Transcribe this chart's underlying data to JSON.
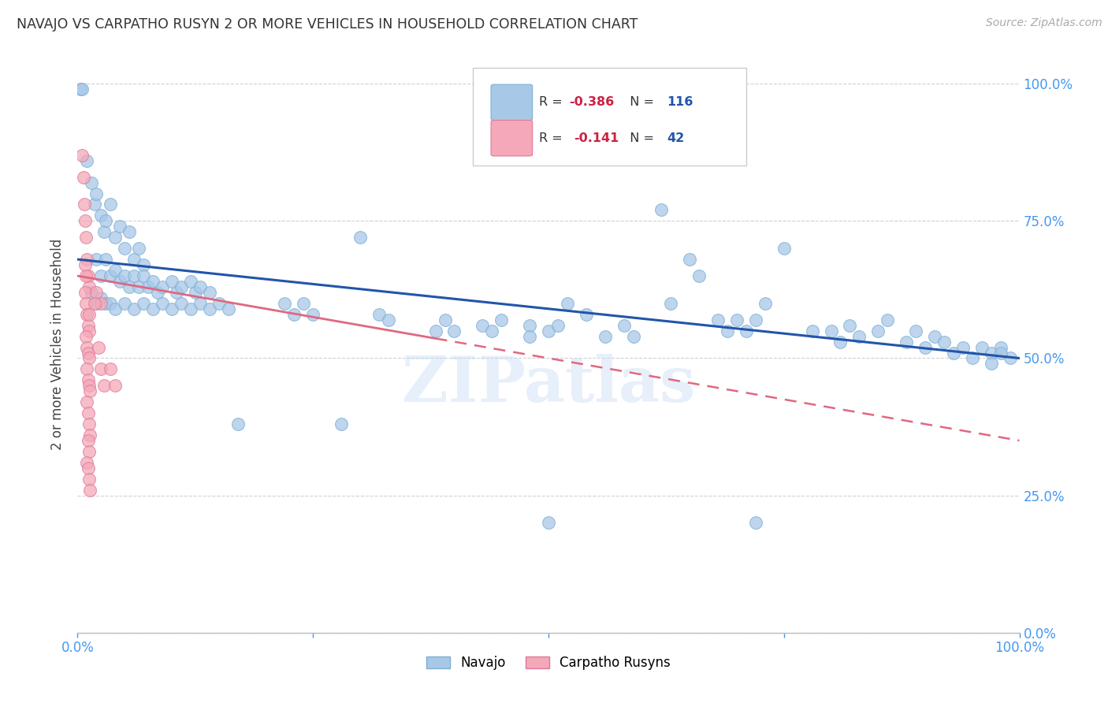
{
  "title": "NAVAJO VS CARPATHO RUSYN 2 OR MORE VEHICLES IN HOUSEHOLD CORRELATION CHART",
  "source": "Source: ZipAtlas.com",
  "ylabel": "2 or more Vehicles in Household",
  "navajo_color": "#a8c8e8",
  "navajo_edge_color": "#7aafd4",
  "carpatho_color": "#f4a8b8",
  "carpatho_edge_color": "#e07898",
  "navajo_line_color": "#2255aa",
  "carpatho_line_color": "#e06880",
  "watermark": "ZIPatlas",
  "xlim": [
    0.0,
    1.0
  ],
  "ylim": [
    0.0,
    1.05
  ],
  "navajo_points": [
    [
      0.003,
      0.99
    ],
    [
      0.005,
      0.99
    ],
    [
      0.01,
      0.86
    ],
    [
      0.015,
      0.82
    ],
    [
      0.018,
      0.78
    ],
    [
      0.02,
      0.8
    ],
    [
      0.025,
      0.76
    ],
    [
      0.028,
      0.73
    ],
    [
      0.03,
      0.75
    ],
    [
      0.035,
      0.78
    ],
    [
      0.04,
      0.72
    ],
    [
      0.045,
      0.74
    ],
    [
      0.05,
      0.7
    ],
    [
      0.055,
      0.73
    ],
    [
      0.06,
      0.68
    ],
    [
      0.065,
      0.7
    ],
    [
      0.07,
      0.67
    ],
    [
      0.02,
      0.68
    ],
    [
      0.025,
      0.65
    ],
    [
      0.03,
      0.68
    ],
    [
      0.035,
      0.65
    ],
    [
      0.04,
      0.66
    ],
    [
      0.045,
      0.64
    ],
    [
      0.05,
      0.65
    ],
    [
      0.055,
      0.63
    ],
    [
      0.06,
      0.65
    ],
    [
      0.065,
      0.63
    ],
    [
      0.07,
      0.65
    ],
    [
      0.075,
      0.63
    ],
    [
      0.08,
      0.64
    ],
    [
      0.085,
      0.62
    ],
    [
      0.09,
      0.63
    ],
    [
      0.1,
      0.64
    ],
    [
      0.105,
      0.62
    ],
    [
      0.11,
      0.63
    ],
    [
      0.12,
      0.64
    ],
    [
      0.125,
      0.62
    ],
    [
      0.13,
      0.63
    ],
    [
      0.14,
      0.62
    ],
    [
      0.015,
      0.62
    ],
    [
      0.02,
      0.6
    ],
    [
      0.025,
      0.61
    ],
    [
      0.03,
      0.6
    ],
    [
      0.035,
      0.6
    ],
    [
      0.04,
      0.59
    ],
    [
      0.05,
      0.6
    ],
    [
      0.06,
      0.59
    ],
    [
      0.07,
      0.6
    ],
    [
      0.08,
      0.59
    ],
    [
      0.09,
      0.6
    ],
    [
      0.1,
      0.59
    ],
    [
      0.11,
      0.6
    ],
    [
      0.12,
      0.59
    ],
    [
      0.13,
      0.6
    ],
    [
      0.14,
      0.59
    ],
    [
      0.15,
      0.6
    ],
    [
      0.16,
      0.59
    ],
    [
      0.17,
      0.38
    ],
    [
      0.22,
      0.6
    ],
    [
      0.23,
      0.58
    ],
    [
      0.24,
      0.6
    ],
    [
      0.25,
      0.58
    ],
    [
      0.28,
      0.38
    ],
    [
      0.3,
      0.72
    ],
    [
      0.32,
      0.58
    ],
    [
      0.33,
      0.57
    ],
    [
      0.38,
      0.55
    ],
    [
      0.39,
      0.57
    ],
    [
      0.4,
      0.55
    ],
    [
      0.43,
      0.56
    ],
    [
      0.44,
      0.55
    ],
    [
      0.45,
      0.57
    ],
    [
      0.48,
      0.56
    ],
    [
      0.5,
      0.55
    ],
    [
      0.51,
      0.56
    ],
    [
      0.48,
      0.54
    ],
    [
      0.52,
      0.6
    ],
    [
      0.54,
      0.58
    ],
    [
      0.56,
      0.54
    ],
    [
      0.58,
      0.56
    ],
    [
      0.59,
      0.54
    ],
    [
      0.62,
      0.77
    ],
    [
      0.63,
      0.6
    ],
    [
      0.65,
      0.68
    ],
    [
      0.66,
      0.65
    ],
    [
      0.68,
      0.57
    ],
    [
      0.69,
      0.55
    ],
    [
      0.7,
      0.57
    ],
    [
      0.71,
      0.55
    ],
    [
      0.72,
      0.57
    ],
    [
      0.73,
      0.6
    ],
    [
      0.75,
      0.7
    ],
    [
      0.78,
      0.55
    ],
    [
      0.8,
      0.55
    ],
    [
      0.81,
      0.53
    ],
    [
      0.82,
      0.56
    ],
    [
      0.83,
      0.54
    ],
    [
      0.85,
      0.55
    ],
    [
      0.86,
      0.57
    ],
    [
      0.88,
      0.53
    ],
    [
      0.89,
      0.55
    ],
    [
      0.9,
      0.52
    ],
    [
      0.91,
      0.54
    ],
    [
      0.92,
      0.53
    ],
    [
      0.93,
      0.51
    ],
    [
      0.94,
      0.52
    ],
    [
      0.95,
      0.5
    ],
    [
      0.96,
      0.52
    ],
    [
      0.97,
      0.51
    ],
    [
      0.98,
      0.52
    ],
    [
      0.99,
      0.5
    ],
    [
      0.97,
      0.49
    ],
    [
      0.98,
      0.51
    ],
    [
      0.72,
      0.2
    ],
    [
      0.5,
      0.2
    ]
  ],
  "carpatho_points": [
    [
      0.005,
      0.87
    ],
    [
      0.006,
      0.83
    ],
    [
      0.007,
      0.78
    ],
    [
      0.008,
      0.75
    ],
    [
      0.009,
      0.72
    ],
    [
      0.01,
      0.68
    ],
    [
      0.011,
      0.65
    ],
    [
      0.012,
      0.63
    ],
    [
      0.008,
      0.62
    ],
    [
      0.009,
      0.6
    ],
    [
      0.01,
      0.58
    ],
    [
      0.011,
      0.56
    ],
    [
      0.012,
      0.55
    ],
    [
      0.009,
      0.54
    ],
    [
      0.01,
      0.52
    ],
    [
      0.011,
      0.51
    ],
    [
      0.012,
      0.5
    ],
    [
      0.01,
      0.48
    ],
    [
      0.011,
      0.46
    ],
    [
      0.012,
      0.45
    ],
    [
      0.013,
      0.44
    ],
    [
      0.01,
      0.42
    ],
    [
      0.011,
      0.4
    ],
    [
      0.012,
      0.38
    ],
    [
      0.013,
      0.36
    ],
    [
      0.011,
      0.35
    ],
    [
      0.012,
      0.33
    ],
    [
      0.01,
      0.31
    ],
    [
      0.011,
      0.3
    ],
    [
      0.012,
      0.28
    ],
    [
      0.013,
      0.26
    ],
    [
      0.008,
      0.67
    ],
    [
      0.009,
      0.65
    ],
    [
      0.02,
      0.62
    ],
    [
      0.025,
      0.6
    ],
    [
      0.012,
      0.58
    ],
    [
      0.018,
      0.6
    ],
    [
      0.022,
      0.52
    ],
    [
      0.025,
      0.48
    ],
    [
      0.028,
      0.45
    ],
    [
      0.035,
      0.48
    ],
    [
      0.04,
      0.45
    ]
  ]
}
